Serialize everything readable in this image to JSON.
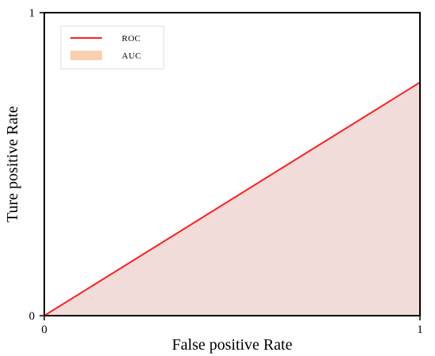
{
  "chart_data": {
    "type": "area",
    "title": "",
    "xlabel": "False positive Rate",
    "ylabel": "Ture positive Rate",
    "xlim": [
      0,
      1
    ],
    "ylim": [
      0,
      1
    ],
    "x_ticks": [
      "0",
      "1"
    ],
    "y_ticks": [
      "0",
      "1"
    ],
    "grid": false,
    "legend_position": "top-left",
    "series": [
      {
        "name": "ROC",
        "kind": "line",
        "color": "#ff1f1f",
        "x": [
          0,
          1
        ],
        "y": [
          0,
          0.77
        ]
      },
      {
        "name": "AUC",
        "kind": "area",
        "color": "#f2dcd9",
        "legend_color": "#f8cfb0",
        "x": [
          0,
          1
        ],
        "y": [
          0,
          0.77
        ]
      }
    ]
  }
}
